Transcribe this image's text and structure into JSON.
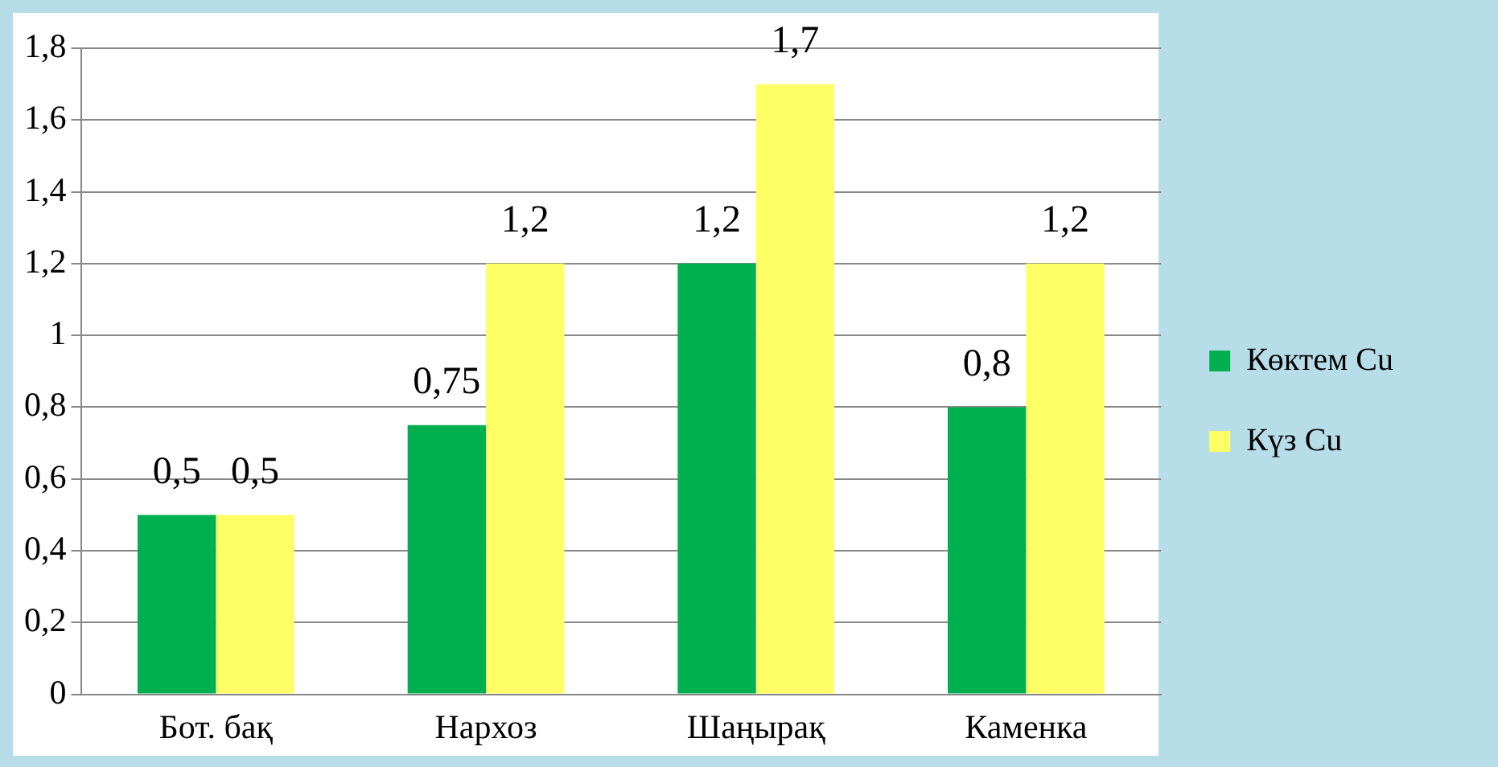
{
  "chart_data": {
    "type": "bar",
    "categories": [
      "Бот. бақ",
      "Нархоз",
      "Шаңырақ",
      "Каменка"
    ],
    "series": [
      {
        "name": "Көктем Cu",
        "color": "#00b050",
        "values": [
          0.5,
          0.75,
          1.2,
          0.8
        ],
        "value_labels": [
          "0,5",
          "0,75",
          "1,2",
          "0,8"
        ]
      },
      {
        "name": "Күз Cu",
        "color": "#ffff66",
        "values": [
          0.5,
          1.2,
          1.7,
          1.2
        ],
        "value_labels": [
          "0,5",
          "1,2",
          "1,7",
          "1,2"
        ]
      }
    ],
    "ylim": [
      0,
      1.8
    ],
    "yticks": [
      {
        "value": 0,
        "label": "0"
      },
      {
        "value": 0.2,
        "label": "0,2"
      },
      {
        "value": 0.4,
        "label": "0,4"
      },
      {
        "value": 0.6,
        "label": "0,6"
      },
      {
        "value": 0.8,
        "label": "0,8"
      },
      {
        "value": 1,
        "label": "1"
      },
      {
        "value": 1.2,
        "label": "1,2"
      },
      {
        "value": 1.4,
        "label": "1,4"
      },
      {
        "value": 1.6,
        "label": "1,6"
      },
      {
        "value": 1.8,
        "label": "1,8"
      }
    ],
    "grid": "y",
    "legend": "right"
  }
}
